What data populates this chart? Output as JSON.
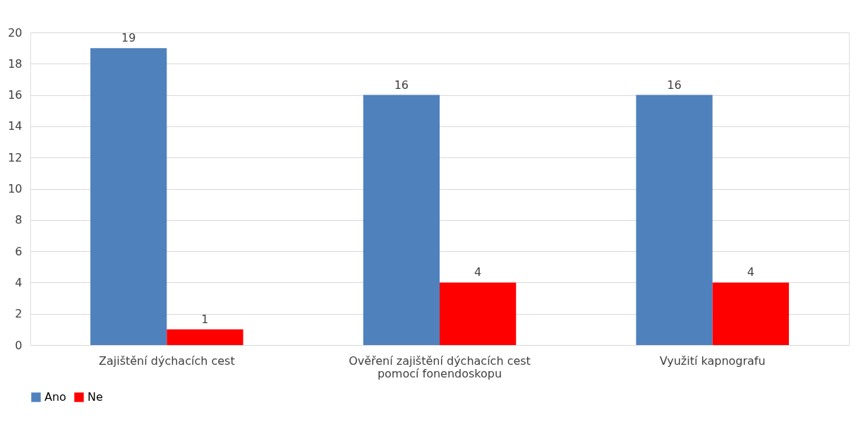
{
  "chart_data": {
    "type": "bar",
    "categories": [
      "Zajištění dýchacích cest",
      "Ověření zajištění dýchacích cest pomocí fonendoskopu",
      "Využití kapnografu"
    ],
    "series": [
      {
        "name": "Ano",
        "color": "#4f81bd",
        "values": [
          19,
          16,
          16
        ]
      },
      {
        "name": "Ne",
        "color": "#ff0000",
        "values": [
          1,
          4,
          4
        ]
      }
    ],
    "ylim": [
      0,
      20
    ],
    "yticks": [
      0,
      2,
      4,
      6,
      8,
      10,
      12,
      14,
      16,
      18,
      20
    ],
    "grid": "y",
    "legend": "bottom",
    "data_labels": true
  }
}
